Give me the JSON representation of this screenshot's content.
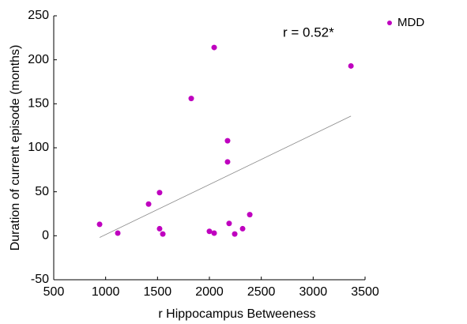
{
  "chart_data": {
    "type": "scatter",
    "xlabel": "r Hippocampus Betweeness",
    "ylabel": "Duration of current episode (months)",
    "annotation": "r = 0.52*",
    "legend": "upper right",
    "series": [
      {
        "name": "MDD",
        "color": "#bf00bf",
        "x": [
          942,
          1117,
          1414,
          1520,
          1520,
          1551,
          1825,
          2000,
          2046,
          2046,
          2175,
          2175,
          2190,
          2244,
          2320,
          2389,
          3364
        ],
        "values": [
          13,
          3,
          36,
          49,
          8,
          2,
          156,
          5,
          214,
          3,
          108,
          84,
          14,
          2,
          8,
          24,
          193
        ]
      }
    ],
    "fit_line": {
      "color": "#888888",
      "x": [
        942,
        3364
      ],
      "values": [
        -2,
        136
      ]
    },
    "xlim": [
      500,
      3500
    ],
    "xticks": [
      500,
      1000,
      1500,
      2000,
      2500,
      3000,
      3500
    ],
    "ylim": [
      -50,
      250
    ],
    "yticks": [
      -50,
      0,
      50,
      100,
      150,
      200,
      250
    ]
  }
}
